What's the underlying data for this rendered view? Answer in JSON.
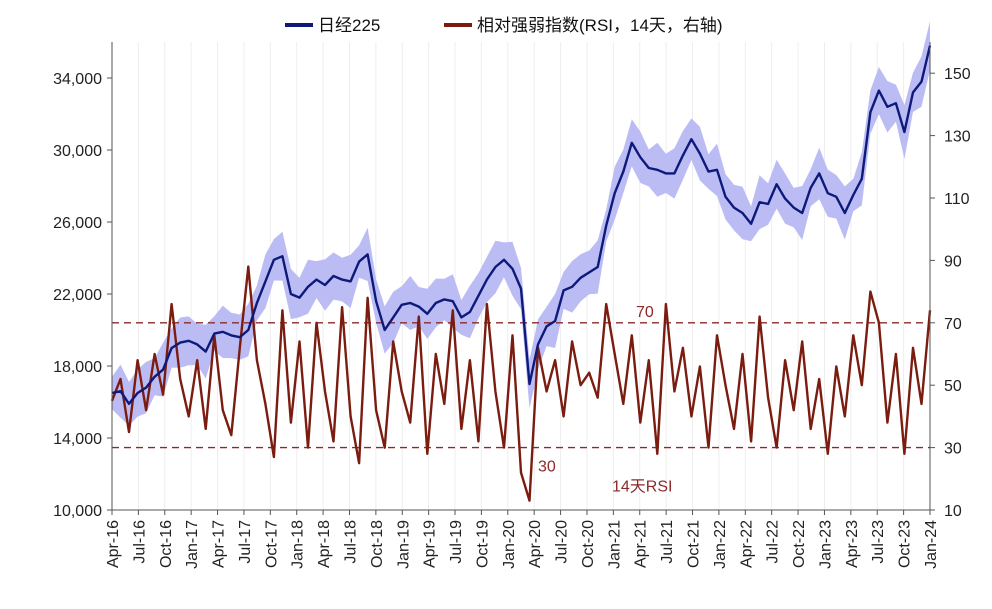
{
  "chart_data": {
    "type": "line",
    "legend": {
      "placement": "top-center",
      "entries": [
        {
          "label": "日经225",
          "color": "#0d1a7a"
        },
        {
          "label": "相对强弱指数(RSI，14天，右轴)",
          "color": "#7b1c10"
        }
      ]
    },
    "x_axis": {
      "ticks": [
        "Apr-16",
        "Jul-16",
        "Oct-16",
        "Jan-17",
        "Apr-17",
        "Jul-17",
        "Oct-17",
        "Jan-18",
        "Apr-18",
        "Jul-18",
        "Oct-18",
        "Jan-19",
        "Apr-19",
        "Jul-19",
        "Oct-19",
        "Jan-20",
        "Apr-20",
        "Jul-20",
        "Oct-20",
        "Jan-21",
        "Apr-21",
        "Jul-21",
        "Oct-21",
        "Jan-22",
        "Apr-22",
        "Jul-22",
        "Oct-22",
        "Jan-23",
        "Apr-23",
        "Jul-23",
        "Oct-23",
        "Jan-24"
      ]
    },
    "y_left": {
      "range": [
        10000,
        36000
      ],
      "ticks": [
        "10,000",
        "14,000",
        "18,000",
        "22,000",
        "26,000",
        "30,000",
        "34,000"
      ]
    },
    "y_right": {
      "range": [
        10,
        160
      ],
      "ticks": [
        "10",
        "30",
        "50",
        "70",
        "90",
        "110",
        "130",
        "150"
      ]
    },
    "reference_lines": [
      {
        "axis": "right",
        "value": 70,
        "label": "70",
        "color": "#8b2a2a"
      },
      {
        "axis": "right",
        "value": 30,
        "label": "30",
        "color": "#8b2a2a"
      }
    ],
    "annotation": {
      "text": "14天RSI",
      "color": "#8b2a2a"
    },
    "band_color": "#b8b8f4",
    "series": [
      {
        "name": "日经225",
        "axis": "left",
        "color": "#0d1a7a",
        "x": [
          0,
          1,
          2,
          3,
          4,
          5,
          6,
          7,
          8,
          9,
          10,
          11,
          12,
          13,
          14,
          15,
          16,
          17,
          18,
          19,
          20,
          21,
          22,
          23,
          24,
          25,
          26,
          27,
          28,
          29,
          30,
          31,
          32,
          33,
          34,
          35,
          36,
          37,
          38,
          39,
          40,
          41,
          42,
          43,
          44,
          45,
          46,
          47,
          48,
          49,
          50,
          51,
          52,
          53,
          54,
          55,
          56,
          57,
          58,
          59,
          60,
          61,
          62,
          63,
          64,
          65,
          66,
          67,
          68,
          69,
          70,
          71,
          72,
          73,
          74,
          75,
          76,
          77,
          78,
          79,
          80,
          81,
          82,
          83,
          84,
          85,
          86,
          87,
          88,
          89,
          90,
          91,
          92,
          93,
          94,
          95,
          96
        ],
        "values": [
          16500,
          16600,
          15900,
          16500,
          16800,
          17400,
          17800,
          19000,
          19300,
          19400,
          19200,
          18800,
          19800,
          19900,
          19700,
          19600,
          20000,
          21500,
          22700,
          23900,
          24100,
          22000,
          21800,
          22400,
          22800,
          22500,
          23000,
          22800,
          22700,
          23800,
          24200,
          21600,
          20000,
          20700,
          21400,
          21500,
          21300,
          20900,
          21500,
          21700,
          21600,
          20700,
          21000,
          21900,
          22800,
          23500,
          23900,
          23400,
          22300,
          17000,
          19200,
          20200,
          20500,
          22200,
          22400,
          22900,
          23200,
          23500,
          25800,
          27600,
          28800,
          30400,
          29600,
          29000,
          28900,
          28700,
          28700,
          29700,
          30600,
          29800,
          28800,
          28900,
          27400,
          26800,
          26500,
          25900,
          27100,
          27000,
          28100,
          27300,
          26800,
          26500,
          27900,
          28700,
          27600,
          27400,
          26500,
          27500,
          28400,
          32100,
          33300,
          32400,
          32600,
          31000,
          33200,
          33800,
          35800
        ]
      },
      {
        "name": "相对强弱指数(RSI，14天，右轴)",
        "axis": "right",
        "color": "#7b1c10",
        "x": [
          0,
          1,
          2,
          3,
          4,
          5,
          6,
          7,
          8,
          9,
          10,
          11,
          12,
          13,
          14,
          15,
          16,
          17,
          18,
          19,
          20,
          21,
          22,
          23,
          24,
          25,
          26,
          27,
          28,
          29,
          30,
          31,
          32,
          33,
          34,
          35,
          36,
          37,
          38,
          39,
          40,
          41,
          42,
          43,
          44,
          45,
          46,
          47,
          48,
          49,
          50,
          51,
          52,
          53,
          54,
          55,
          56,
          57,
          58,
          59,
          60,
          61,
          62,
          63,
          64,
          65,
          66,
          67,
          68,
          69,
          70,
          71,
          72,
          73,
          74,
          75,
          76,
          77,
          78,
          79,
          80,
          81,
          82,
          83,
          84,
          85,
          86,
          87,
          88,
          89,
          90,
          91,
          92,
          93,
          94,
          95,
          96
        ],
        "values": [
          45,
          52,
          35,
          58,
          42,
          60,
          47,
          76,
          52,
          40,
          58,
          36,
          66,
          42,
          34,
          62,
          88,
          58,
          44,
          27,
          74,
          38,
          64,
          30,
          70,
          48,
          32,
          75,
          40,
          25,
          78,
          42,
          30,
          64,
          48,
          38,
          72,
          28,
          60,
          44,
          74,
          36,
          58,
          32,
          76,
          48,
          30,
          66,
          22,
          13,
          62,
          48,
          58,
          40,
          64,
          50,
          54,
          46,
          76,
          60,
          44,
          66,
          38,
          58,
          28,
          76,
          48,
          62,
          40,
          56,
          30,
          66,
          50,
          36,
          60,
          32,
          72,
          46,
          30,
          58,
          42,
          64,
          36,
          52,
          28,
          56,
          40,
          66,
          50,
          80,
          70,
          38,
          60,
          28,
          62,
          44,
          74
        ]
      }
    ]
  }
}
